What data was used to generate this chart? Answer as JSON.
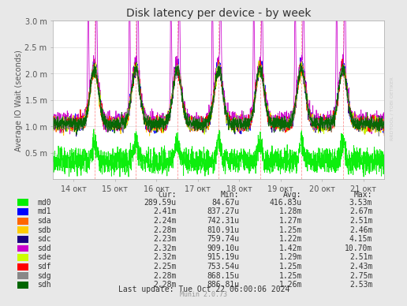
{
  "title": "Disk latency per device - by week",
  "ylabel": "Average IO Wait (seconds)",
  "x_tick_labels": [
    "14 окт",
    "15 окт",
    "16 окт",
    "17 окт",
    "18 окт",
    "19 окт",
    "20 окт",
    "21 окт"
  ],
  "ytick_labels": [
    "0.5 m",
    "1.0 m",
    "1.5 m",
    "2.0 m",
    "2.5 m",
    "3.0 m"
  ],
  "legend_entries": [
    {
      "label": "md0",
      "color": "#00EE00",
      "cur": "289.59u",
      "min": "84.67u",
      "avg": "416.83u",
      "max": "3.53m"
    },
    {
      "label": "md1",
      "color": "#0000FF",
      "cur": "2.41m",
      "min": "837.27u",
      "avg": "1.28m",
      "max": "2.67m"
    },
    {
      "label": "sda",
      "color": "#FF6600",
      "cur": "2.24m",
      "min": "742.31u",
      "avg": "1.27m",
      "max": "2.51m"
    },
    {
      "label": "sdb",
      "color": "#FFCC00",
      "cur": "2.28m",
      "min": "810.91u",
      "avg": "1.25m",
      "max": "2.46m"
    },
    {
      "label": "sdc",
      "color": "#1A0082",
      "cur": "2.23m",
      "min": "759.74u",
      "avg": "1.22m",
      "max": "4.15m"
    },
    {
      "label": "sdd",
      "color": "#CC00CC",
      "cur": "2.32m",
      "min": "909.10u",
      "avg": "1.42m",
      "max": "10.70m"
    },
    {
      "label": "sde",
      "color": "#CCFF00",
      "cur": "2.32m",
      "min": "915.19u",
      "avg": "1.29m",
      "max": "2.51m"
    },
    {
      "label": "sdf",
      "color": "#FF0000",
      "cur": "2.25m",
      "min": "753.54u",
      "avg": "1.25m",
      "max": "2.43m"
    },
    {
      "label": "sdg",
      "color": "#888888",
      "cur": "2.28m",
      "min": "868.15u",
      "avg": "1.25m",
      "max": "2.75m"
    },
    {
      "label": "sdh",
      "color": "#006600",
      "cur": "2.28m",
      "min": "886.81u",
      "avg": "1.26m",
      "max": "2.53m"
    }
  ],
  "footer": "Last update: Tue Oct 22 06:00:06 2024",
  "watermark": "Munin 2.0.73",
  "rrdtool_label": "RRDTOOL / TOBI OETIKER"
}
